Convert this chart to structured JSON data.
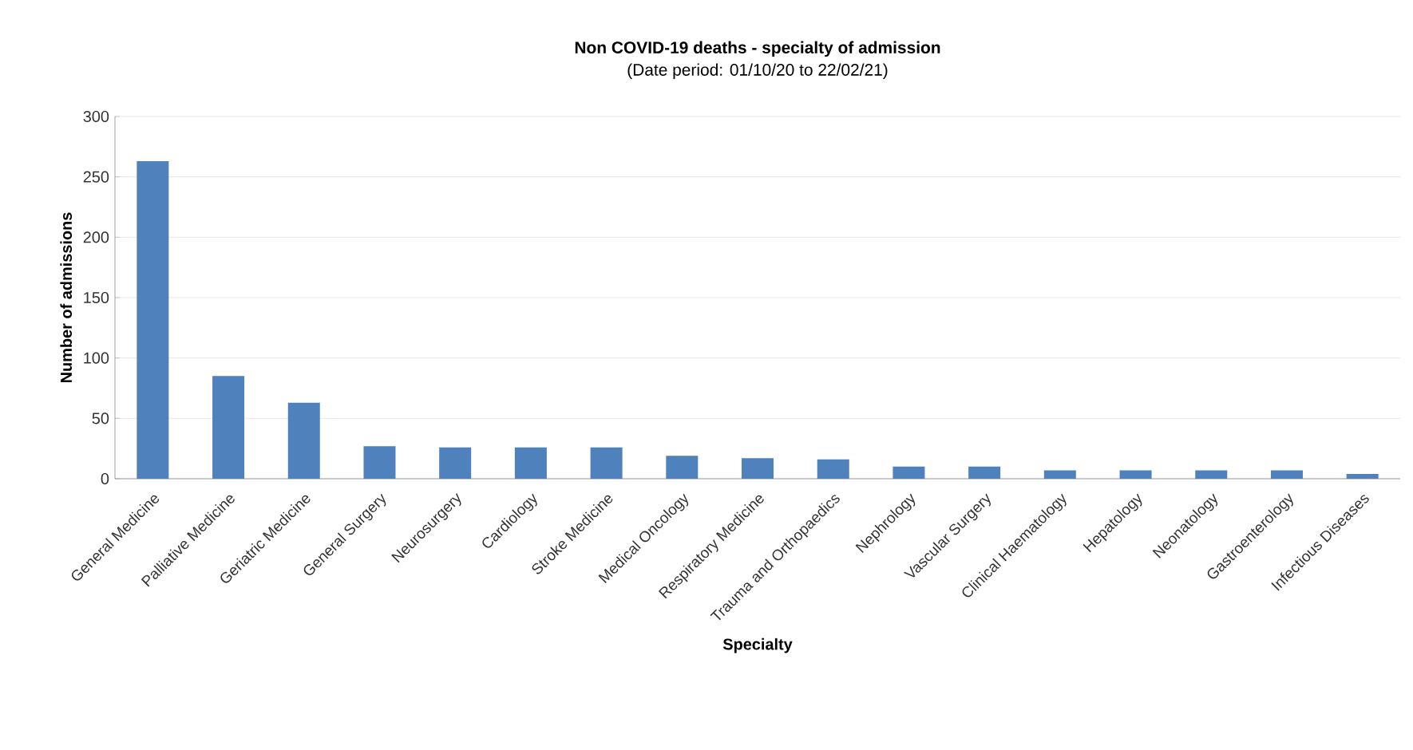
{
  "chart_data": {
    "type": "bar",
    "title": "Non COVID-19 deaths - specialty of admission",
    "subtitle": "(Date period: 01/10/20 to 22/02/21)",
    "xlabel": "Specialty",
    "ylabel": "Number of admissions",
    "categories": [
      "General Medicine",
      "Palliative Medicine",
      "Geriatric Medicine",
      "General Surgery",
      "Neurosurgery",
      "Cardiology",
      "Stroke Medicine",
      "Medical Oncology",
      "Respiratory Medicine",
      "Trauma and Orthopaedics",
      "Nephrology",
      "Vascular Surgery",
      "Clinical Haematology",
      "Hepatology",
      "Neonatology",
      "Gastroenterology",
      "Infectious Diseases"
    ],
    "values": [
      263,
      85,
      63,
      27,
      26,
      26,
      26,
      19,
      17,
      16,
      10,
      10,
      7,
      7,
      7,
      7,
      4
    ],
    "color": "#4f81bd",
    "ylim": [
      0,
      300
    ],
    "yticks": [
      0,
      50,
      100,
      150,
      200,
      250,
      300
    ],
    "grid": "y"
  }
}
